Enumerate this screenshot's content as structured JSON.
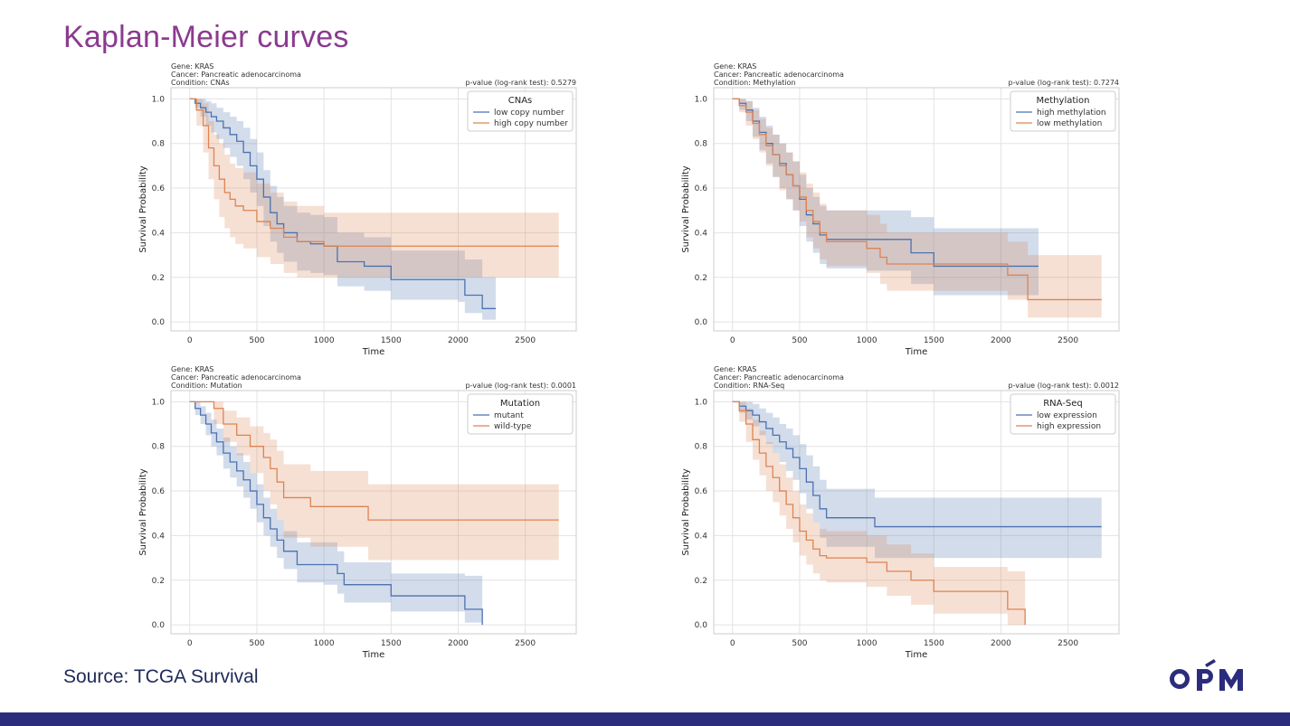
{
  "slide": {
    "title": "Kaplan-Meier curves",
    "source": "Source: TCGA Survival",
    "logo_text": "OPM",
    "colors": {
      "title": "#8b3a8f",
      "source": "#1f2a5a",
      "footer": "#2b2d7c",
      "logo": "#2b2d7c"
    }
  },
  "chart_data": [
    {
      "type": "line",
      "gene": "Gene: KRAS",
      "cancer": "Cancer: Pancreatic adenocarcinoma",
      "condition": "Condition: CNAs",
      "pvalue": "p-value (log-rank test): 0.5279",
      "xlabel": "Time",
      "ylabel": "Survival Probability",
      "xlim": [
        -140,
        2880
      ],
      "ylim": [
        -0.04,
        1.05
      ],
      "xticks": [
        0,
        500,
        1000,
        1500,
        2000,
        2500
      ],
      "xtick_labels": [
        "0",
        "500",
        "1000",
        "1500",
        "2000",
        "2500"
      ],
      "yticks": [
        0,
        0.2,
        0.4,
        0.6,
        0.8,
        1.0
      ],
      "ytick_labels": [
        "0.0",
        "0.2",
        "0.4",
        "0.6",
        "0.8",
        "1.0"
      ],
      "grid": true,
      "legend": {
        "title": "CNAs",
        "position": "top-right"
      },
      "series": [
        {
          "name": "low copy number",
          "color": "#4c72b0",
          "x": [
            0,
            40,
            80,
            120,
            160,
            200,
            250,
            300,
            350,
            400,
            450,
            500,
            550,
            600,
            650,
            700,
            800,
            900,
            1000,
            1100,
            1300,
            1500,
            2000,
            2050,
            2180,
            2280
          ],
          "y": [
            1.0,
            0.98,
            0.96,
            0.94,
            0.92,
            0.9,
            0.87,
            0.84,
            0.81,
            0.76,
            0.7,
            0.64,
            0.56,
            0.49,
            0.44,
            0.4,
            0.36,
            0.35,
            0.34,
            0.27,
            0.25,
            0.19,
            0.19,
            0.12,
            0.06,
            0.06
          ],
          "lower": [
            1.0,
            0.96,
            0.92,
            0.88,
            0.85,
            0.82,
            0.78,
            0.74,
            0.7,
            0.64,
            0.58,
            0.52,
            0.43,
            0.36,
            0.31,
            0.27,
            0.23,
            0.22,
            0.21,
            0.16,
            0.14,
            0.1,
            0.09,
            0.04,
            0.01,
            0.01
          ],
          "upper": [
            1.0,
            1.0,
            1.0,
            0.99,
            0.98,
            0.96,
            0.94,
            0.92,
            0.9,
            0.87,
            0.82,
            0.76,
            0.68,
            0.61,
            0.56,
            0.52,
            0.49,
            0.48,
            0.47,
            0.4,
            0.38,
            0.32,
            0.32,
            0.28,
            0.2,
            0.2
          ]
        },
        {
          "name": "high copy number",
          "color": "#dd8452",
          "x": [
            0,
            50,
            100,
            140,
            180,
            220,
            260,
            300,
            340,
            400,
            500,
            600,
            700,
            800,
            1000,
            2750
          ],
          "y": [
            1.0,
            0.95,
            0.88,
            0.78,
            0.7,
            0.64,
            0.58,
            0.55,
            0.52,
            0.5,
            0.45,
            0.42,
            0.38,
            0.36,
            0.34,
            0.34
          ],
          "lower": [
            1.0,
            0.88,
            0.76,
            0.64,
            0.55,
            0.47,
            0.42,
            0.38,
            0.35,
            0.33,
            0.29,
            0.26,
            0.22,
            0.2,
            0.2,
            0.2
          ],
          "upper": [
            1.0,
            1.0,
            0.98,
            0.9,
            0.84,
            0.8,
            0.75,
            0.71,
            0.69,
            0.67,
            0.62,
            0.58,
            0.54,
            0.52,
            0.49,
            0.49
          ]
        }
      ]
    },
    {
      "type": "line",
      "gene": "Gene: KRAS",
      "cancer": "Cancer: Pancreatic adenocarcinoma",
      "condition": "Condition: Methylation",
      "pvalue": "p-value (log-rank test): 0.7274",
      "xlabel": "Time",
      "ylabel": "Survival Probability",
      "xlim": [
        -140,
        2880
      ],
      "ylim": [
        -0.04,
        1.05
      ],
      "xticks": [
        0,
        500,
        1000,
        1500,
        2000,
        2500
      ],
      "xtick_labels": [
        "0",
        "500",
        "1000",
        "1500",
        "2000",
        "2500"
      ],
      "yticks": [
        0,
        0.2,
        0.4,
        0.6,
        0.8,
        1.0
      ],
      "ytick_labels": [
        "0.0",
        "0.2",
        "0.4",
        "0.6",
        "0.8",
        "1.0"
      ],
      "grid": true,
      "legend": {
        "title": "Methylation",
        "position": "top-right"
      },
      "series": [
        {
          "name": "high methylation",
          "color": "#4c72b0",
          "x": [
            0,
            50,
            100,
            150,
            200,
            250,
            300,
            350,
            400,
            450,
            500,
            550,
            600,
            650,
            700,
            1000,
            1330,
            1500,
            2280
          ],
          "y": [
            1.0,
            0.98,
            0.95,
            0.9,
            0.85,
            0.8,
            0.75,
            0.71,
            0.66,
            0.61,
            0.55,
            0.48,
            0.44,
            0.39,
            0.37,
            0.37,
            0.31,
            0.25,
            0.25
          ],
          "lower": [
            1.0,
            0.95,
            0.9,
            0.83,
            0.77,
            0.71,
            0.65,
            0.6,
            0.55,
            0.5,
            0.43,
            0.36,
            0.31,
            0.26,
            0.24,
            0.23,
            0.17,
            0.12,
            0.12
          ],
          "upper": [
            1.0,
            1.0,
            0.99,
            0.96,
            0.92,
            0.88,
            0.84,
            0.8,
            0.76,
            0.72,
            0.66,
            0.6,
            0.56,
            0.52,
            0.5,
            0.5,
            0.47,
            0.42,
            0.42
          ]
        },
        {
          "name": "low methylation",
          "color": "#dd8452",
          "x": [
            0,
            50,
            100,
            150,
            200,
            250,
            300,
            350,
            400,
            450,
            500,
            550,
            600,
            650,
            700,
            1000,
            1100,
            1150,
            2050,
            2200,
            2750
          ],
          "y": [
            1.0,
            0.97,
            0.94,
            0.89,
            0.84,
            0.79,
            0.75,
            0.7,
            0.66,
            0.61,
            0.56,
            0.5,
            0.45,
            0.4,
            0.36,
            0.33,
            0.29,
            0.26,
            0.21,
            0.1,
            0.1
          ],
          "lower": [
            1.0,
            0.94,
            0.88,
            0.82,
            0.76,
            0.7,
            0.65,
            0.59,
            0.55,
            0.5,
            0.45,
            0.38,
            0.33,
            0.28,
            0.25,
            0.22,
            0.17,
            0.14,
            0.1,
            0.02,
            0.02
          ],
          "upper": [
            1.0,
            1.0,
            0.99,
            0.95,
            0.91,
            0.87,
            0.84,
            0.8,
            0.76,
            0.72,
            0.67,
            0.62,
            0.58,
            0.53,
            0.5,
            0.48,
            0.44,
            0.4,
            0.36,
            0.3,
            0.3
          ]
        }
      ]
    },
    {
      "type": "line",
      "gene": "Gene: KRAS",
      "cancer": "Cancer: Pancreatic adenocarcinoma",
      "condition": "Condition: Mutation",
      "pvalue": "p-value (log-rank test): 0.0001",
      "xlabel": "Time",
      "ylabel": "Survival Probability",
      "xlim": [
        -140,
        2880
      ],
      "ylim": [
        -0.04,
        1.05
      ],
      "xticks": [
        0,
        500,
        1000,
        1500,
        2000,
        2500
      ],
      "xtick_labels": [
        "0",
        "500",
        "1000",
        "1500",
        "2000",
        "2500"
      ],
      "yticks": [
        0,
        0.2,
        0.4,
        0.6,
        0.8,
        1.0
      ],
      "ytick_labels": [
        "0.0",
        "0.2",
        "0.4",
        "0.6",
        "0.8",
        "1.0"
      ],
      "grid": true,
      "legend": {
        "title": "Mutation",
        "position": "top-right"
      },
      "series": [
        {
          "name": "mutant",
          "color": "#4c72b0",
          "x": [
            0,
            40,
            80,
            120,
            160,
            200,
            250,
            300,
            350,
            400,
            450,
            500,
            550,
            600,
            650,
            700,
            800,
            1000,
            1100,
            1150,
            1500,
            2050,
            2180
          ],
          "y": [
            1.0,
            0.97,
            0.94,
            0.9,
            0.86,
            0.82,
            0.77,
            0.73,
            0.69,
            0.65,
            0.6,
            0.54,
            0.48,
            0.43,
            0.38,
            0.33,
            0.27,
            0.27,
            0.23,
            0.18,
            0.13,
            0.07,
            0.0
          ],
          "lower": [
            1.0,
            0.94,
            0.9,
            0.85,
            0.8,
            0.76,
            0.7,
            0.66,
            0.62,
            0.57,
            0.52,
            0.46,
            0.4,
            0.35,
            0.3,
            0.25,
            0.19,
            0.18,
            0.14,
            0.1,
            0.06,
            0.01,
            0.0
          ],
          "upper": [
            1.0,
            1.0,
            0.98,
            0.95,
            0.92,
            0.88,
            0.84,
            0.8,
            0.77,
            0.73,
            0.68,
            0.63,
            0.57,
            0.52,
            0.47,
            0.42,
            0.37,
            0.37,
            0.33,
            0.28,
            0.23,
            0.22,
            0.22
          ]
        },
        {
          "name": "wild-type",
          "color": "#dd8452",
          "x": [
            0,
            180,
            250,
            350,
            450,
            550,
            600,
            650,
            700,
            900,
            1330,
            2750
          ],
          "y": [
            1.0,
            0.97,
            0.9,
            0.85,
            0.8,
            0.75,
            0.7,
            0.64,
            0.57,
            0.53,
            0.47,
            0.47
          ],
          "lower": [
            1.0,
            0.9,
            0.82,
            0.76,
            0.68,
            0.6,
            0.54,
            0.47,
            0.39,
            0.35,
            0.29,
            0.29
          ],
          "upper": [
            1.0,
            1.0,
            0.96,
            0.93,
            0.89,
            0.86,
            0.83,
            0.78,
            0.72,
            0.69,
            0.63,
            0.63
          ]
        }
      ]
    },
    {
      "type": "line",
      "gene": "Gene: KRAS",
      "cancer": "Cancer: Pancreatic adenocarcinoma",
      "condition": "Condition: RNA-Seq",
      "pvalue": "p-value (log-rank test): 0.0012",
      "xlabel": "Time",
      "ylabel": "Survival Probability",
      "xlim": [
        -140,
        2880
      ],
      "ylim": [
        -0.04,
        1.05
      ],
      "xticks": [
        0,
        500,
        1000,
        1500,
        2000,
        2500
      ],
      "xtick_labels": [
        "0",
        "500",
        "1000",
        "1500",
        "2000",
        "2500"
      ],
      "yticks": [
        0,
        0.2,
        0.4,
        0.6,
        0.8,
        1.0
      ],
      "ytick_labels": [
        "0.0",
        "0.2",
        "0.4",
        "0.6",
        "0.8",
        "1.0"
      ],
      "grid": true,
      "legend": {
        "title": "RNA-Seq",
        "position": "top-right"
      },
      "series": [
        {
          "name": "low expression",
          "color": "#4c72b0",
          "x": [
            0,
            50,
            100,
            150,
            200,
            250,
            300,
            350,
            400,
            450,
            500,
            550,
            600,
            650,
            700,
            1060,
            2750
          ],
          "y": [
            1.0,
            0.98,
            0.96,
            0.94,
            0.91,
            0.88,
            0.85,
            0.82,
            0.79,
            0.75,
            0.7,
            0.64,
            0.58,
            0.52,
            0.48,
            0.44,
            0.44
          ],
          "lower": [
            1.0,
            0.95,
            0.92,
            0.89,
            0.85,
            0.81,
            0.77,
            0.73,
            0.69,
            0.65,
            0.59,
            0.52,
            0.46,
            0.39,
            0.35,
            0.3,
            0.3
          ],
          "upper": [
            1.0,
            1.0,
            1.0,
            0.99,
            0.97,
            0.95,
            0.93,
            0.9,
            0.88,
            0.85,
            0.81,
            0.76,
            0.71,
            0.65,
            0.61,
            0.57,
            0.57
          ]
        },
        {
          "name": "high expression",
          "color": "#dd8452",
          "x": [
            0,
            50,
            100,
            150,
            200,
            250,
            300,
            350,
            400,
            450,
            500,
            550,
            600,
            650,
            700,
            1000,
            1150,
            1330,
            1500,
            2050,
            2180
          ],
          "y": [
            1.0,
            0.96,
            0.9,
            0.83,
            0.77,
            0.71,
            0.66,
            0.6,
            0.54,
            0.48,
            0.42,
            0.38,
            0.34,
            0.31,
            0.3,
            0.28,
            0.24,
            0.2,
            0.15,
            0.07,
            0.0
          ],
          "lower": [
            1.0,
            0.91,
            0.82,
            0.74,
            0.67,
            0.6,
            0.55,
            0.49,
            0.43,
            0.37,
            0.31,
            0.27,
            0.23,
            0.2,
            0.19,
            0.17,
            0.13,
            0.09,
            0.05,
            0.0,
            0.0
          ],
          "upper": [
            1.0,
            1.0,
            0.97,
            0.92,
            0.87,
            0.82,
            0.77,
            0.72,
            0.66,
            0.6,
            0.54,
            0.5,
            0.46,
            0.43,
            0.42,
            0.4,
            0.36,
            0.32,
            0.26,
            0.24,
            0.24
          ]
        }
      ]
    }
  ]
}
